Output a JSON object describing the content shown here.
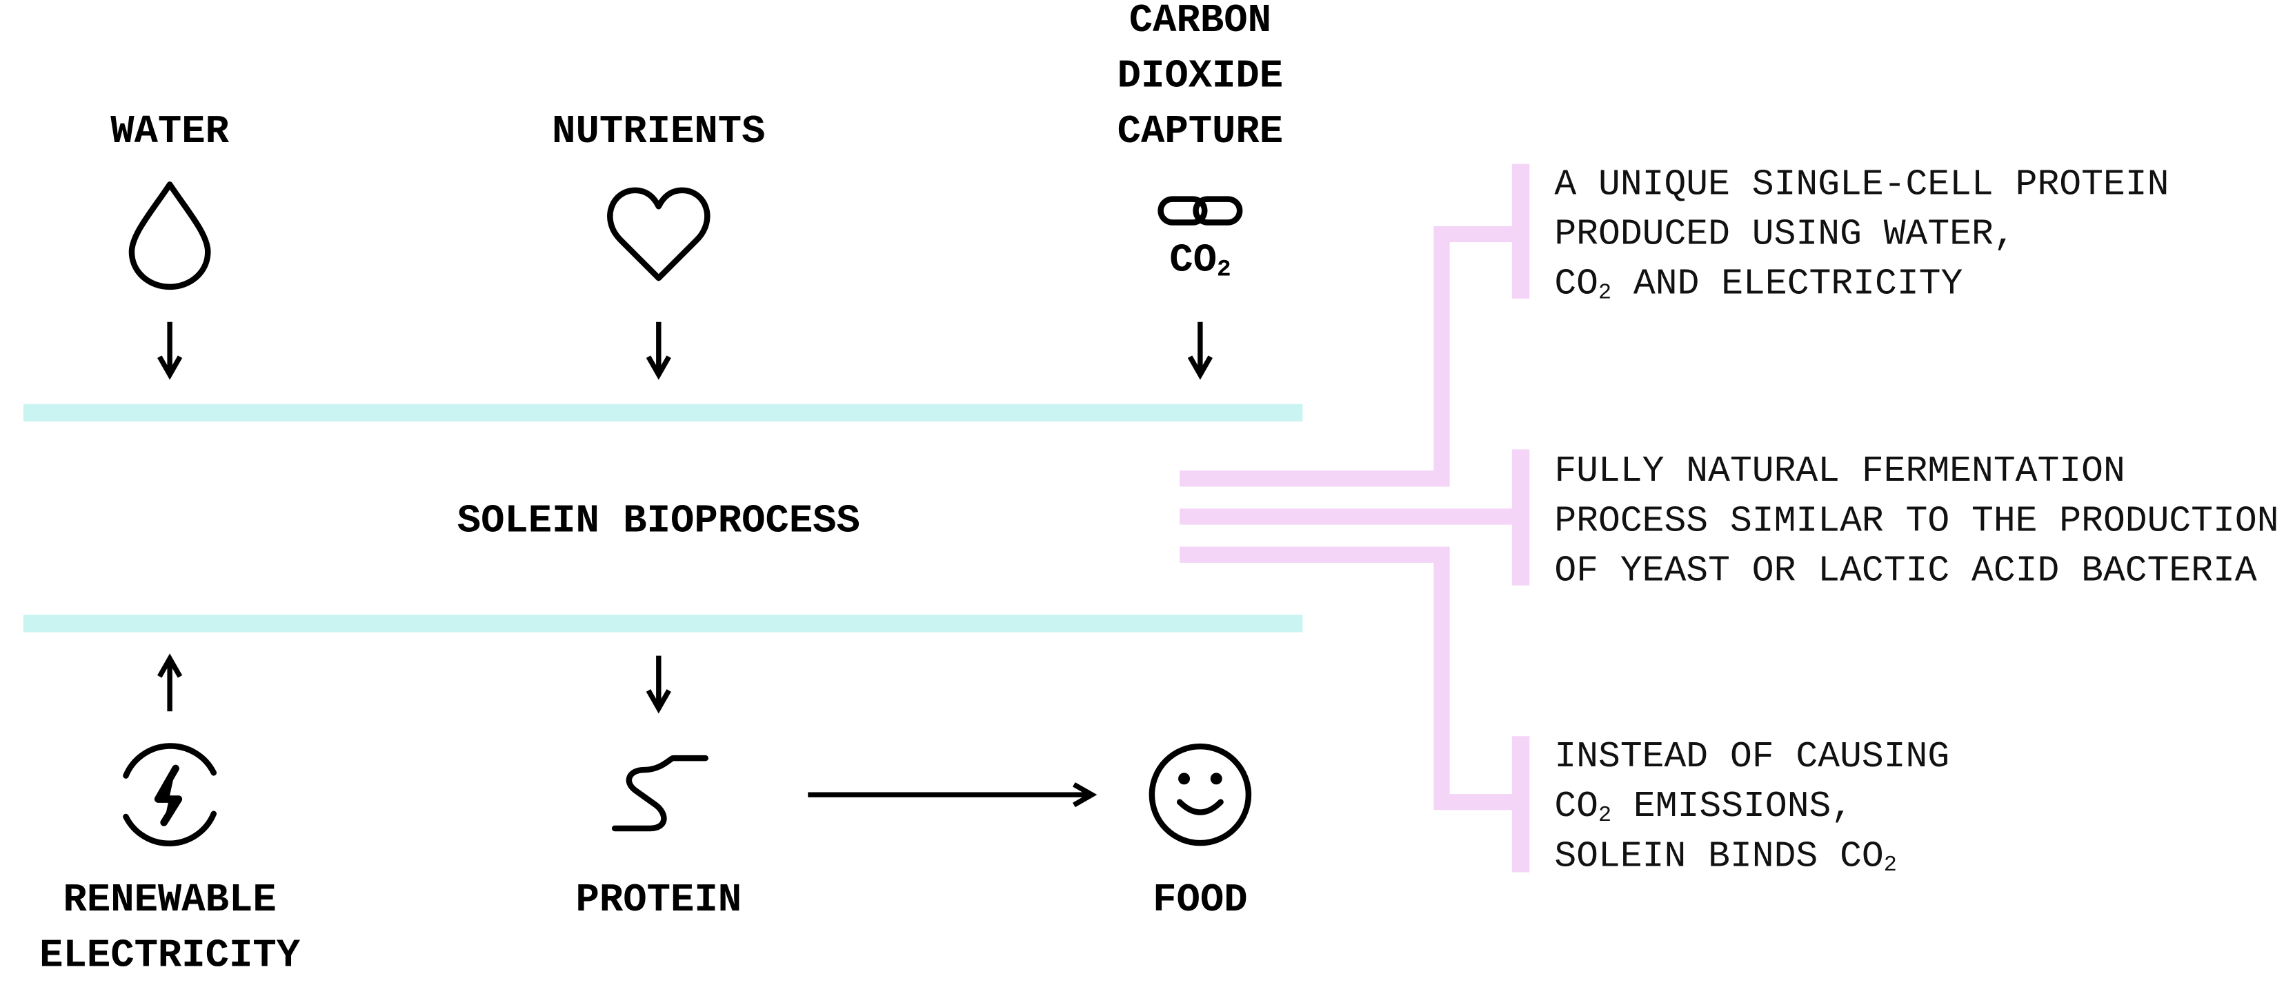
{
  "inputs": [
    {
      "label_lines": [
        "WATER"
      ]
    },
    {
      "label_lines": [
        "NUTRIENTS"
      ]
    },
    {
      "label_lines": [
        "CARBON",
        "DIOXIDE",
        "CAPTURE"
      ],
      "icon_text": [
        {
          "text": "CO"
        },
        {
          "text": "2",
          "sub": true
        }
      ]
    }
  ],
  "process": {
    "label": "SOLEIN BIOPROCESS"
  },
  "outputs": [
    {
      "label_lines": [
        "RENEWABLE",
        "ELECTRICITY"
      ]
    },
    {
      "label_lines": [
        "PROTEIN"
      ]
    },
    {
      "label_lines": [
        "FOOD"
      ]
    }
  ],
  "notes": [
    {
      "lines": [
        [
          {
            "text": "A UNIQUE SINGLE-CELL PROTEIN"
          }
        ],
        [
          {
            "text": "PRODUCED USING WATER,"
          }
        ],
        [
          {
            "text": "CO"
          },
          {
            "text": "2",
            "sub": true
          },
          {
            "text": " AND ELECTRICITY"
          }
        ]
      ]
    },
    {
      "lines": [
        [
          {
            "text": "FULLY NATURAL FERMENTATION"
          }
        ],
        [
          {
            "text": "PROCESS SIMILAR TO THE PRODUCTION"
          }
        ],
        [
          {
            "text": "OF YEAST OR LACTIC ACID BACTERIA"
          }
        ]
      ]
    },
    {
      "lines": [
        [
          {
            "text": "INSTEAD OF CAUSING"
          }
        ],
        [
          {
            "text": "CO"
          },
          {
            "text": "2",
            "sub": true
          },
          {
            "text": " EMISSIONS,"
          }
        ],
        [
          {
            "text": "SOLEIN BINDS CO"
          },
          {
            "text": "2",
            "sub": true
          }
        ]
      ]
    }
  ]
}
